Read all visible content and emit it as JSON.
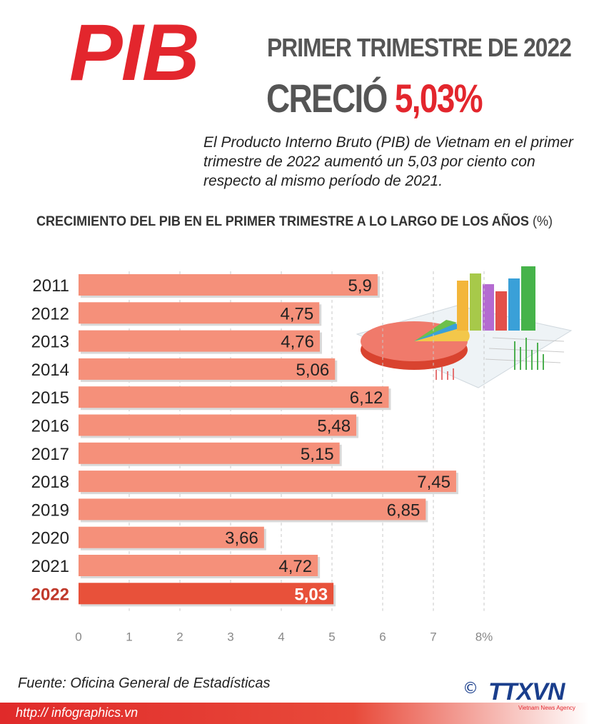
{
  "header": {
    "logo": "PIB",
    "subtitle": "PRIMER TRIMESTRE DE 2022",
    "grew_label": "CRECIÓ",
    "grew_value": "5,03%",
    "description": "El Producto Interno Bruto (PIB) de Vietnam en el primer trimestre de 2022 aumentó un 5,03 por ciento con respecto al mismo período de 2021."
  },
  "chart_title": "CRECIMIENTO DEL PIB EN EL PRIMER TRIMESTRE A LO LARGO DE LOS AÑOS",
  "chart_unit": "(%)",
  "chart_data": {
    "type": "bar",
    "orientation": "horizontal",
    "categories": [
      "2011",
      "2012",
      "2013",
      "2014",
      "2015",
      "2016",
      "2017",
      "2018",
      "2019",
      "2020",
      "2021",
      "2022"
    ],
    "values": [
      5.9,
      4.75,
      4.76,
      5.06,
      6.12,
      5.48,
      5.15,
      7.45,
      6.85,
      3.66,
      4.72,
      5.03
    ],
    "value_labels": [
      "5,9",
      "4,75",
      "4,76",
      "5,06",
      "6,12",
      "5,48",
      "5,15",
      "7,45",
      "6,85",
      "3,66",
      "4,72",
      "5,03"
    ],
    "highlight_category": "2022",
    "x_ticks": [
      "0",
      "1",
      "2",
      "3",
      "4",
      "5",
      "6",
      "7",
      "8%"
    ],
    "xlim": [
      0,
      8
    ],
    "grid": "vertical dashed",
    "colors": {
      "bar": "#f5907a",
      "highlight": "#e8513a",
      "year_highlight": "#c0392b"
    }
  },
  "footer": {
    "source": "Fuente: Oficina General de  Estadísticas",
    "url": "http:// infographics.vn",
    "copyright": "©",
    "agency_logo": "TTXVN",
    "agency_tagline": "Vietnam News Agency"
  }
}
